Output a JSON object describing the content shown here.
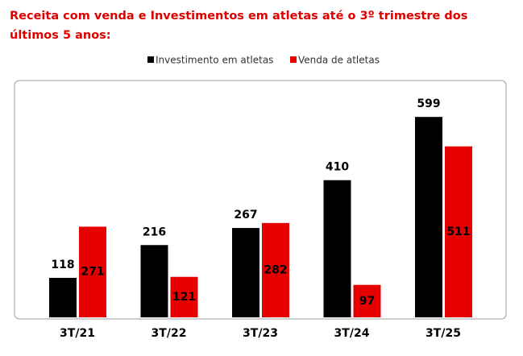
{
  "chart_data": {
    "type": "bar",
    "title": "Receita com venda e Investimentos em atletas até o 3º trimestre dos últimos 5 anos:",
    "categories": [
      "3T/21",
      "3T/22",
      "3T/23",
      "3T/24",
      "3T/25"
    ],
    "series": [
      {
        "name": "Investimento em atletas",
        "color": "#000000",
        "values": [
          118,
          216,
          267,
          410,
          599
        ]
      },
      {
        "name": "Venda de atletas",
        "color": "#e60000",
        "values": [
          271,
          121,
          282,
          97,
          511
        ]
      }
    ],
    "ylim": [
      0,
      650
    ]
  }
}
